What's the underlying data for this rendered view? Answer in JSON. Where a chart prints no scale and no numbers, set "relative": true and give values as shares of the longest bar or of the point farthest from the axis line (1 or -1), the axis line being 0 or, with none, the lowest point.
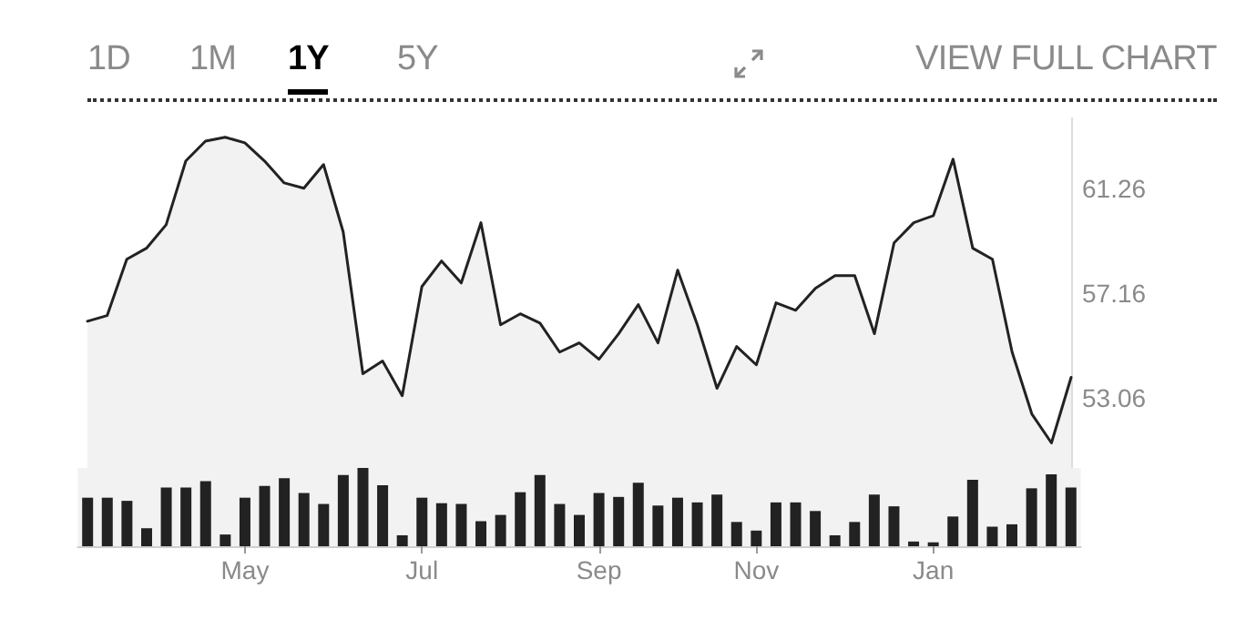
{
  "chart_data": [
    {
      "type": "area",
      "annotations": [
        "1D",
        "1M",
        "1Y",
        "5Y",
        "VIEW FULL CHART"
      ],
      "categories": [
        null,
        null,
        null,
        null,
        null,
        null,
        null,
        null,
        null,
        null,
        null,
        null,
        null,
        null,
        null,
        null,
        null,
        null,
        null,
        null,
        null,
        null,
        null,
        null,
        null,
        null,
        null,
        null,
        null,
        null,
        null,
        null,
        null,
        null,
        null,
        null,
        null,
        null,
        null,
        null,
        null,
        null,
        null,
        null,
        null,
        null,
        null,
        null,
        null,
        null,
        null
      ],
      "tick_labels": "y",
      "values": [
        56.05,
        56.27,
        58.48,
        58.91,
        59.83,
        62.33,
        63.11,
        63.26,
        63.04,
        62.33,
        61.47,
        61.26,
        62.19,
        59.55,
        53.99,
        54.49,
        53.13,
        57.41,
        58.41,
        57.55,
        59.91,
        55.91,
        56.34,
        55.98,
        54.84,
        55.2,
        54.56,
        55.56,
        56.7,
        55.2,
        58.05,
        55.91,
        53.42,
        55.06,
        54.34,
        56.77,
        56.48,
        57.34,
        57.84,
        57.84,
        55.56,
        59.12,
        59.91,
        60.19,
        62.4,
        58.91,
        58.48,
        54.84,
        52.42,
        51.28,
        53.85
      ],
      "color": "#222222",
      "ylim": [
        50.3,
        64
      ],
      "yticks": [
        53.06,
        57.16,
        61.26
      ],
      "grid": false,
      "marker": "none",
      "line_style": "solid"
    },
    {
      "type": "bar",
      "relative": true,
      "color": "#222222",
      "categories": [
        null,
        null,
        null,
        null,
        null,
        null,
        null,
        null,
        "May",
        null,
        null,
        null,
        null,
        null,
        null,
        null,
        null,
        "Jul",
        null,
        null,
        null,
        null,
        null,
        null,
        null,
        null,
        "Sep",
        null,
        null,
        null,
        null,
        null,
        null,
        null,
        "Nov",
        null,
        null,
        null,
        null,
        null,
        null,
        null,
        null,
        "Jan",
        null,
        null,
        null,
        null,
        null,
        null,
        null
      ],
      "values": [
        0.62,
        0.62,
        0.58,
        0.23,
        0.75,
        0.75,
        0.83,
        0.15,
        0.62,
        0.77,
        0.87,
        0.68,
        0.54,
        0.91,
        1,
        0.78,
        0.14,
        0.62,
        0.55,
        0.54,
        0.32,
        0.4,
        0.69,
        0.91,
        0.54,
        0.4,
        0.68,
        0.63,
        0.81,
        0.52,
        0.62,
        0.56,
        0.66,
        0.31,
        0.2,
        0.56,
        0.56,
        0.45,
        0.14,
        0.31,
        0.66,
        0.51,
        0.06,
        0.05,
        0.38,
        0.85,
        0.25,
        0.28,
        0.74,
        0.92,
        0.75
      ]
    }
  ]
}
